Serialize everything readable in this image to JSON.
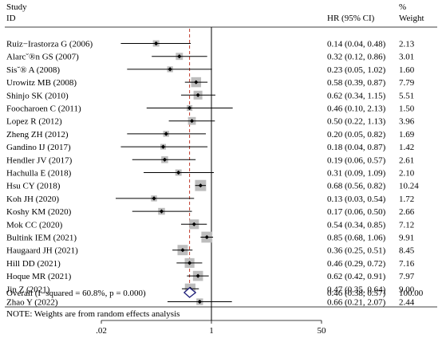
{
  "header": {
    "study_label": "Study",
    "id_label": "ID",
    "hr_label": "HR (95% CI)",
    "pct_label": "%",
    "weight_label": "Weight"
  },
  "note": "NOTE: Weights are from random effects analysis",
  "colors": {
    "box": "#bdbdbd",
    "point": "#000000",
    "diamond": "#1f1f7a",
    "pooled_line": "#c0392b"
  },
  "chart_data": {
    "type": "forest",
    "x_scale": "log",
    "x_ticks": [
      {
        "value": 0.02,
        "label": ".02"
      },
      {
        "value": 1,
        "label": "1"
      },
      {
        "value": 50,
        "label": "50"
      }
    ],
    "null_value": 1,
    "pooled_line_value": 0.46,
    "studies": [
      {
        "id": "Ruiz−Irastorza G (2006)",
        "hr": 0.14,
        "lo": 0.04,
        "hi": 0.48,
        "label": "0.14 (0.04, 0.48)",
        "weight": 2.13,
        "weight_label": "2.13"
      },
      {
        "id": "Alarc˘®n GS (2007)",
        "hr": 0.32,
        "lo": 0.12,
        "hi": 0.86,
        "label": "0.32 (0.12, 0.86)",
        "weight": 3.01,
        "weight_label": "3.01"
      },
      {
        "id": "Sis˘® A (2008)",
        "hr": 0.23,
        "lo": 0.05,
        "hi": 1.02,
        "label": "0.23 (0.05, 1.02)",
        "weight": 1.6,
        "weight_label": "1.60"
      },
      {
        "id": "Urowitz MB (2008)",
        "hr": 0.58,
        "lo": 0.39,
        "hi": 0.87,
        "label": "0.58 (0.39, 0.87)",
        "weight": 7.79,
        "weight_label": "7.79"
      },
      {
        "id": "Shinjo SK (2010)",
        "hr": 0.62,
        "lo": 0.34,
        "hi": 1.15,
        "label": "0.62 (0.34, 1.15)",
        "weight": 5.51,
        "weight_label": "5.51"
      },
      {
        "id": "Foocharoen C (2011)",
        "hr": 0.46,
        "lo": 0.1,
        "hi": 2.13,
        "label": "0.46 (0.10, 2.13)",
        "weight": 1.5,
        "weight_label": "1.50"
      },
      {
        "id": "Lopez R (2012)",
        "hr": 0.5,
        "lo": 0.22,
        "hi": 1.13,
        "label": "0.50 (0.22, 1.13)",
        "weight": 3.96,
        "weight_label": "3.96"
      },
      {
        "id": "Zheng ZH (2012)",
        "hr": 0.2,
        "lo": 0.05,
        "hi": 0.82,
        "label": "0.20 (0.05, 0.82)",
        "weight": 1.69,
        "weight_label": "1.69"
      },
      {
        "id": "Gandino IJ (2017)",
        "hr": 0.18,
        "lo": 0.04,
        "hi": 0.87,
        "label": "0.18 (0.04, 0.87)",
        "weight": 1.42,
        "weight_label": "1.42"
      },
      {
        "id": "Hendler JV (2017)",
        "hr": 0.19,
        "lo": 0.06,
        "hi": 0.57,
        "label": "0.19 (0.06, 0.57)",
        "weight": 2.61,
        "weight_label": "2.61"
      },
      {
        "id": "Hachulla E (2018)",
        "hr": 0.31,
        "lo": 0.09,
        "hi": 1.09,
        "label": "0.31 (0.09, 1.09)",
        "weight": 2.1,
        "weight_label": "2.10"
      },
      {
        "id": "Hsu CY (2018)",
        "hr": 0.68,
        "lo": 0.56,
        "hi": 0.82,
        "label": "0.68 (0.56, 0.82)",
        "weight": 10.24,
        "weight_label": "10.24"
      },
      {
        "id": "Koh JH (2020)",
        "hr": 0.13,
        "lo": 0.03,
        "hi": 0.54,
        "label": "0.13 (0.03, 0.54)",
        "weight": 1.72,
        "weight_label": "1.72"
      },
      {
        "id": "Koshy KM (2020)",
        "hr": 0.17,
        "lo": 0.06,
        "hi": 0.5,
        "label": "0.17 (0.06, 0.50)",
        "weight": 2.66,
        "weight_label": "2.66"
      },
      {
        "id": "Mok CC (2020)",
        "hr": 0.54,
        "lo": 0.34,
        "hi": 0.85,
        "label": "0.54 (0.34, 0.85)",
        "weight": 7.12,
        "weight_label": "7.12"
      },
      {
        "id": "Bultink IEM (2021)",
        "hr": 0.85,
        "lo": 0.68,
        "hi": 1.06,
        "label": "0.85 (0.68, 1.06)",
        "weight": 9.91,
        "weight_label": "9.91"
      },
      {
        "id": "Haugaard JH (2021)",
        "hr": 0.36,
        "lo": 0.25,
        "hi": 0.51,
        "label": "0.36 (0.25, 0.51)",
        "weight": 8.45,
        "weight_label": "8.45"
      },
      {
        "id": "Hill DD (2021)",
        "hr": 0.46,
        "lo": 0.29,
        "hi": 0.72,
        "label": "0.46 (0.29, 0.72)",
        "weight": 7.16,
        "weight_label": "7.16"
      },
      {
        "id": "Hoque MR (2021)",
        "hr": 0.62,
        "lo": 0.42,
        "hi": 0.91,
        "label": "0.62 (0.42, 0.91)",
        "weight": 7.97,
        "weight_label": "7.97"
      },
      {
        "id": "Jin Z (2021)",
        "hr": 0.47,
        "lo": 0.35,
        "hi": 0.64,
        "label": "0.47 (0.35, 0.64)",
        "weight": 9.0,
        "weight_label": "9.00"
      },
      {
        "id": "Zhao Y (2022)",
        "hr": 0.66,
        "lo": 0.21,
        "hi": 2.07,
        "label": "0.66 (0.21, 2.07)",
        "weight": 2.44,
        "weight_label": "2.44"
      }
    ],
    "overall": {
      "id": "Overall  (I−squared = 60.8%, p = 0.000)",
      "hr": 0.46,
      "lo": 0.38,
      "hi": 0.57,
      "label": "0.46 (0.38, 0.57)",
      "weight_label": "100.00"
    }
  }
}
